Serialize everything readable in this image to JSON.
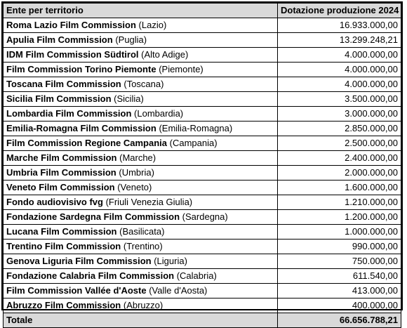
{
  "header": {
    "col1": "Ente per territorio",
    "col2": "Dotazione  produzione 2024"
  },
  "rows": [
    {
      "org": "Roma Lazio Film Commission",
      "region": "(Lazio)",
      "value": "16.933.000,00"
    },
    {
      "org": "Apulia Film Commission",
      "region": "(Puglia)",
      "value": "13.299.248,21"
    },
    {
      "org": "IDM Film Commission Südtirol",
      "region": "(Alto Adige)",
      "value": "4.000.000,00"
    },
    {
      "org": "Film Commission Torino Piemonte",
      "region": "(Piemonte)",
      "value": "4.000.000,00"
    },
    {
      "org": "Toscana Film Commission",
      "region": "(Toscana)",
      "value": "4.000.000,00"
    },
    {
      "org": "Sicilia Film Commission",
      "region": "(Sicilia)",
      "value": "3.500.000,00"
    },
    {
      "org": "Lombardia Film Commission",
      "region": "(Lombardia)",
      "value": "3.000.000,00"
    },
    {
      "org": "Emilia-Romagna Film Commission",
      "region": "(Emilia-Romagna)",
      "value": "2.850.000,00"
    },
    {
      "org": "Film Commission Regione Campania",
      "region": "(Campania)",
      "value": "2.500.000,00"
    },
    {
      "org": "Marche Film Commission",
      "region": "(Marche)",
      "value": "2.400.000,00"
    },
    {
      "org": "Umbria Film Commission",
      "region": "(Umbria)",
      "value": "2.000.000,00"
    },
    {
      "org": "Veneto Film Commission",
      "region": "(Veneto)",
      "value": "1.600.000,00"
    },
    {
      "org": "Fondo audiovisivo fvg",
      "region": "(Friuli Venezia Giulia)",
      "value": "1.210.000,00"
    },
    {
      "org": "Fondazione Sardegna Film Commission",
      "region": "(Sardegna)",
      "value": "1.200.000,00"
    },
    {
      "org": "Lucana Film Commission",
      "region": "(Basilicata)",
      "value": "1.000.000,00"
    },
    {
      "org": "Trentino Film Commission",
      "region": "(Trentino)",
      "value": "990.000,00"
    },
    {
      "org": "Genova Liguria Film Commission",
      "region": "(Liguria)",
      "value": "750.000,00"
    },
    {
      "org": "Fondazione Calabria Film Commission",
      "region": "(Calabria)",
      "value": "611.540,00"
    },
    {
      "org": "Film Commission Vallée d'Aoste",
      "region": "(Valle d'Aosta)",
      "value": "413.000,00"
    },
    {
      "org": "Abruzzo Film Commission",
      "region": "(Abruzzo)",
      "value": "400.000,00"
    }
  ],
  "total": {
    "label": "Totale",
    "value": "66.656.788,21"
  }
}
